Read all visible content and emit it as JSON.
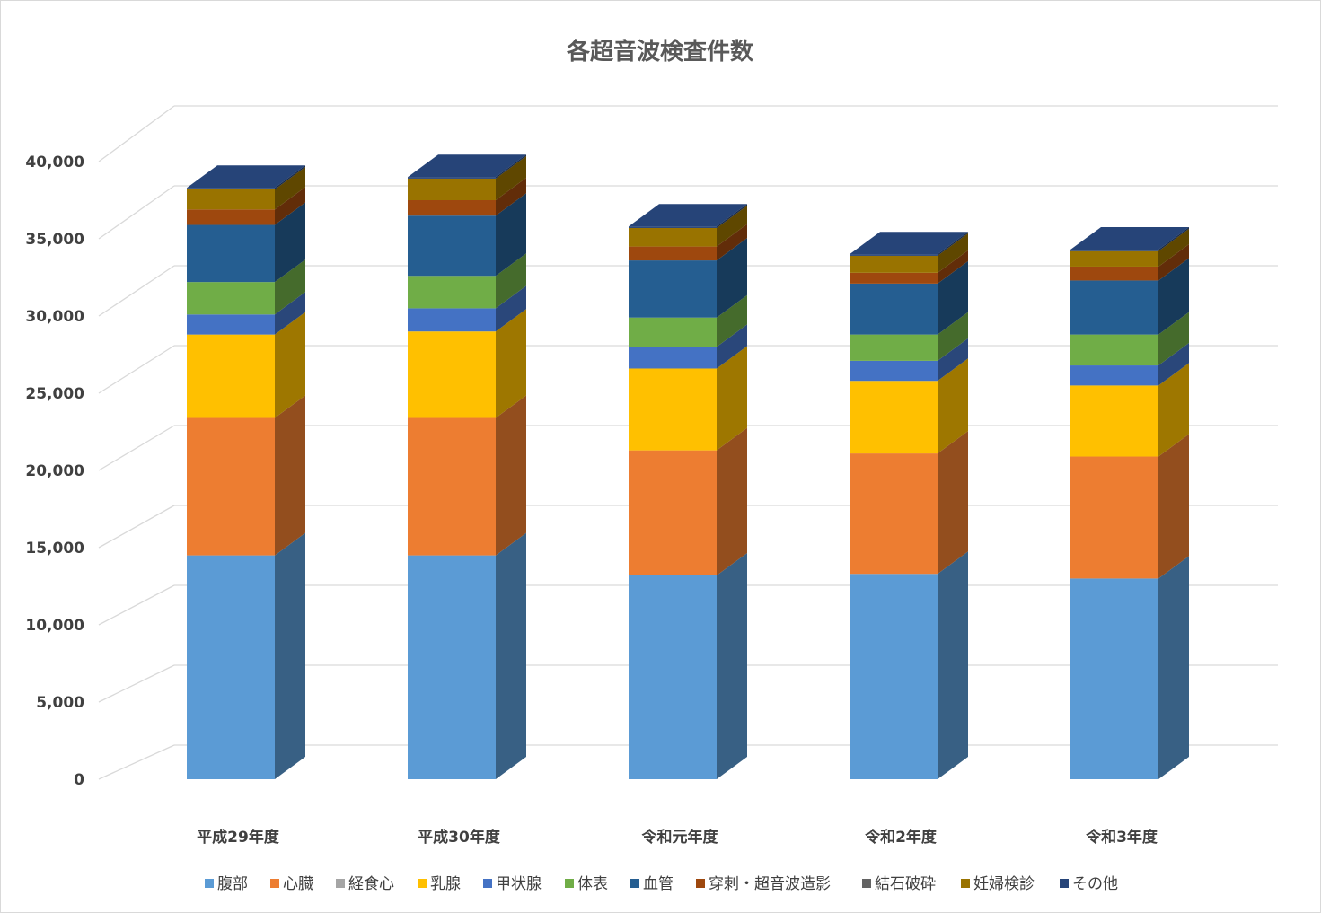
{
  "chart_data": {
    "type": "bar",
    "stacked": true,
    "style": "3d-column",
    "title": "各超音波検査件数",
    "xlabel": "",
    "ylabel": "",
    "ylim": [
      0,
      40000
    ],
    "yticks": [
      0,
      5000,
      10000,
      15000,
      20000,
      25000,
      30000,
      35000,
      40000
    ],
    "ytick_labels": [
      "0",
      "5,000",
      "10,000",
      "15,000",
      "20,000",
      "25,000",
      "30,000",
      "35,000",
      "40,000"
    ],
    "categories": [
      "平成29年度",
      "平成30年度",
      "令和元年度",
      "令和2年度",
      "令和3年度"
    ],
    "legend_position": "bottom",
    "series": [
      {
        "name": "腹部",
        "color": "#5B9BD5",
        "values": [
          14500,
          14500,
          13200,
          13300,
          13000
        ]
      },
      {
        "name": "心臓",
        "color": "#ED7D31",
        "values": [
          8900,
          8900,
          8100,
          7800,
          7900
        ]
      },
      {
        "name": "経食心",
        "color": "#A5A5A5",
        "values": [
          0,
          0,
          0,
          0,
          0
        ]
      },
      {
        "name": "乳腺",
        "color": "#FFC000",
        "values": [
          5400,
          5600,
          5300,
          4700,
          4600
        ]
      },
      {
        "name": "甲状腺",
        "color": "#4472C4",
        "values": [
          1300,
          1500,
          1400,
          1300,
          1300
        ]
      },
      {
        "name": "体表",
        "color": "#70AD47",
        "values": [
          2100,
          2100,
          1900,
          1700,
          2000
        ]
      },
      {
        "name": "血管",
        "color": "#255E91",
        "values": [
          3700,
          3900,
          3700,
          3300,
          3500
        ]
      },
      {
        "name": "穿刺・超音波造影",
        "color": "#9E480E",
        "values": [
          1000,
          1000,
          900,
          700,
          900
        ]
      },
      {
        "name": "結石破砕",
        "color": "#636363",
        "values": [
          0,
          0,
          0,
          0,
          0
        ]
      },
      {
        "name": "妊婦検診",
        "color": "#997300",
        "values": [
          1300,
          1400,
          1200,
          1100,
          1000
        ]
      },
      {
        "name": "その他",
        "color": "#264478",
        "values": [
          100,
          100,
          100,
          100,
          100
        ]
      }
    ]
  }
}
